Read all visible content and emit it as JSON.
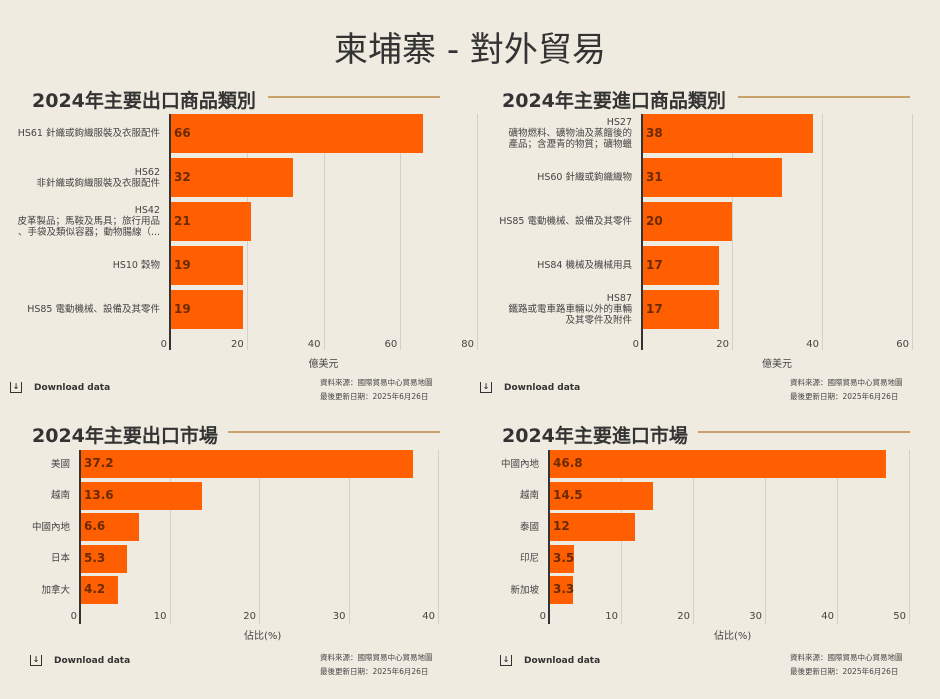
{
  "title": "柬埔寨 - 對外貿易",
  "download_label": "Download data",
  "source": "資料來源：國際貿易中心貿易地圖",
  "updated": "最後更新日期：2025年6月26日",
  "colors": {
    "bar": "#ff5f00",
    "title_line": "#c8a26a",
    "background": "#f0ebe0"
  },
  "chart_data": [
    {
      "type": "bar",
      "orientation": "horizontal",
      "title": "2024年主要出口商品類別",
      "xlabel": "億美元",
      "xlim": [
        0,
        80
      ],
      "ticks": [
        "0",
        "20",
        "40",
        "60",
        "80"
      ],
      "categories": [
        "HS61 針織或鉤織服裝及衣服配件",
        "HS62\n非針織或鉤織服裝及衣服配件",
        "HS42\n皮革製品；馬鞍及馬具；旅行用品\n、手袋及類似容器；動物腸線（...",
        "HS10 穀物",
        "HS85 電動機械、設備及其零件"
      ],
      "values": [
        66,
        32,
        21,
        19,
        19
      ]
    },
    {
      "type": "bar",
      "orientation": "horizontal",
      "title": "2024年主要進口商品類別",
      "xlabel": "億美元",
      "xlim": [
        0,
        60
      ],
      "ticks": [
        "0",
        "20",
        "40",
        "60"
      ],
      "categories": [
        "HS27\n礦物燃料、礦物油及蒸餾後的\n產品；含瀝青的物質；礦物蠟",
        "HS60 針織或鉤織織物",
        "HS85 電動機械、設備及其零件",
        "HS84 機械及機械用具",
        "HS87\n鐵路或電車路車輛以外的車輛\n及其零件及附件"
      ],
      "values": [
        38,
        31,
        20,
        17,
        17
      ]
    },
    {
      "type": "bar",
      "orientation": "horizontal",
      "title": "2024年主要出口市場",
      "xlabel": "佔比(%)",
      "xlim": [
        0,
        40
      ],
      "ticks": [
        "0",
        "10",
        "20",
        "30",
        "40"
      ],
      "categories": [
        "美國",
        "越南",
        "中國內地",
        "日本",
        "加拿大"
      ],
      "values": [
        37.2,
        13.6,
        6.6,
        5.3,
        4.2
      ]
    },
    {
      "type": "bar",
      "orientation": "horizontal",
      "title": "2024年主要進口市場",
      "xlabel": "佔比(%)",
      "xlim": [
        0,
        50
      ],
      "ticks": [
        "0",
        "10",
        "20",
        "30",
        "40",
        "50"
      ],
      "categories": [
        "中國內地",
        "越南",
        "泰國",
        "印尼",
        "新加坡"
      ],
      "values": [
        46.8,
        14.5,
        12,
        3.5,
        3.3
      ]
    }
  ]
}
